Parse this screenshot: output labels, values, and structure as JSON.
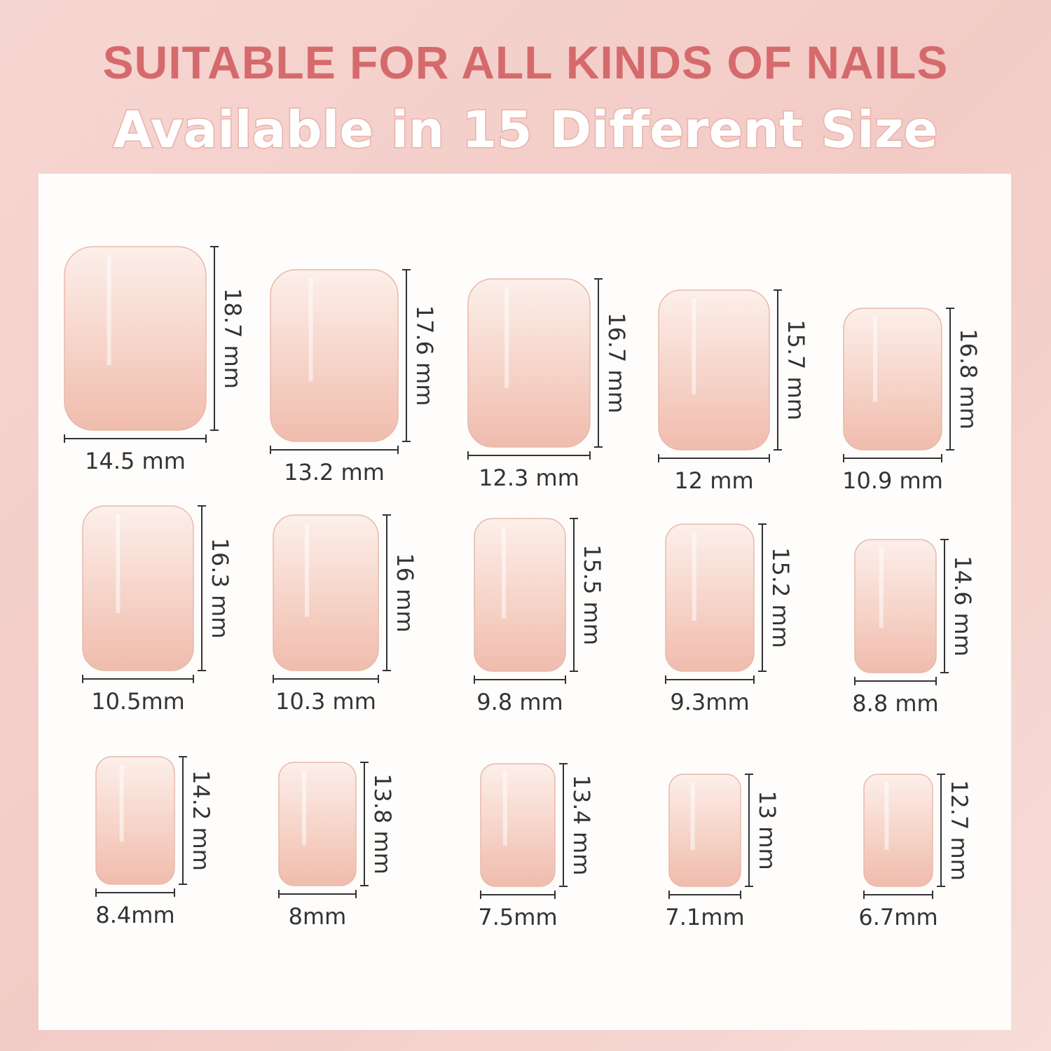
{
  "header": {
    "title": "SUITABLE FOR ALL KINDS OF NAILS",
    "subtitle": "Available in 15 Different Size"
  },
  "nails": [
    {
      "width": "14.5 mm",
      "length": "18.7 mm"
    },
    {
      "width": "13.2 mm",
      "length": "17.6 mm"
    },
    {
      "width": "12.3 mm",
      "length": "16.7 mm"
    },
    {
      "width": "12 mm",
      "length": "15.7 mm"
    },
    {
      "width": "10.9 mm",
      "length": "16.8 mm"
    },
    {
      "width": "10.5mm",
      "length": "16.3 mm"
    },
    {
      "width": "10.3 mm",
      "length": "16 mm"
    },
    {
      "width": "9.8 mm",
      "length": "15.5 mm"
    },
    {
      "width": "9.3mm",
      "length": "15.2 mm"
    },
    {
      "width": "8.8 mm",
      "length": "14.6 mm"
    },
    {
      "width": "8.4mm",
      "length": "14.2 mm"
    },
    {
      "width": "8mm",
      "length": "13.8 mm"
    },
    {
      "width": "7.5mm",
      "length": "13.4 mm"
    },
    {
      "width": "7.1mm",
      "length": "13 mm"
    },
    {
      "width": "6.7mm",
      "length": "12.7 mm"
    }
  ]
}
